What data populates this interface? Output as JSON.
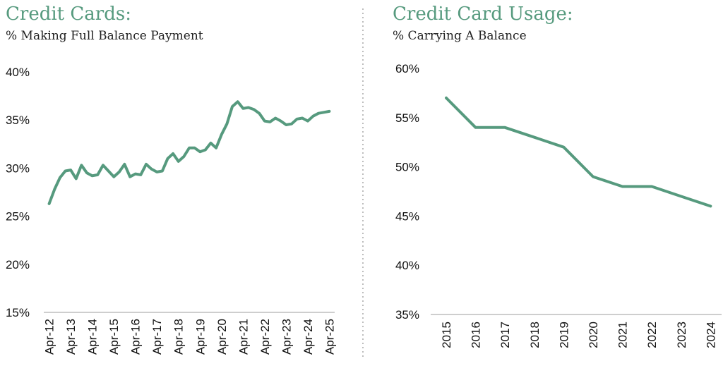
{
  "colors": {
    "series": "#569a7e",
    "title": "#569a7e",
    "divider": "#bdbdbd",
    "axis": "#9e9e9e"
  },
  "chart_data": [
    {
      "type": "line",
      "title": "Credit Cards:",
      "subtitle": "% Making Full Balance Payment",
      "y_tick_labels": [
        "40%",
        "35%",
        "30%",
        "25%",
        "20%",
        "15%"
      ],
      "y_ticks": [
        40,
        35,
        30,
        25,
        20,
        15
      ],
      "ylim": [
        15,
        40
      ],
      "x_tick_labels": [
        "Apr-12",
        "Apr-13",
        "Apr-14",
        "Apr-15",
        "Apr-16",
        "Apr-17",
        "Apr-18",
        "Apr-19",
        "Apr-20",
        "Apr-21",
        "Apr-22",
        "Apr-23",
        "Apr-24",
        "Apr-25"
      ],
      "x_tick_positions": [
        2012.25,
        2013.25,
        2014.25,
        2015.25,
        2016.25,
        2017.25,
        2018.25,
        2019.25,
        2020.25,
        2021.25,
        2022.25,
        2023.25,
        2024.25,
        2025.25
      ],
      "xlim": [
        2012.0,
        2025.5
      ],
      "x": [
        2012.25,
        2012.5,
        2012.75,
        2013.0,
        2013.25,
        2013.5,
        2013.75,
        2014.0,
        2014.25,
        2014.5,
        2014.75,
        2015.0,
        2015.25,
        2015.5,
        2015.75,
        2016.0,
        2016.25,
        2016.5,
        2016.75,
        2017.0,
        2017.25,
        2017.5,
        2017.75,
        2018.0,
        2018.25,
        2018.5,
        2018.75,
        2019.0,
        2019.25,
        2019.5,
        2019.75,
        2020.0,
        2020.25,
        2020.5,
        2020.75,
        2021.0,
        2021.25,
        2021.5,
        2021.75,
        2022.0,
        2022.25,
        2022.5,
        2022.75,
        2023.0,
        2023.25,
        2023.5,
        2023.75,
        2024.0,
        2024.25,
        2024.5,
        2024.75,
        2025.0,
        2025.25
      ],
      "y": [
        26.3,
        27.8,
        29.0,
        29.7,
        29.8,
        28.9,
        30.3,
        29.5,
        29.2,
        29.3,
        30.3,
        29.7,
        29.1,
        29.6,
        30.4,
        29.1,
        29.4,
        29.3,
        30.4,
        29.9,
        29.6,
        29.7,
        31.0,
        31.5,
        30.7,
        31.2,
        32.1,
        32.1,
        31.7,
        31.9,
        32.6,
        32.1,
        33.5,
        34.6,
        36.4,
        36.9,
        36.2,
        36.3,
        36.1,
        35.7,
        34.9,
        34.8,
        35.2,
        34.9,
        34.5,
        34.6,
        35.1,
        35.2,
        34.9,
        35.4,
        35.7,
        35.8,
        35.9
      ]
    },
    {
      "type": "line",
      "title": "Credit Card Usage:",
      "subtitle": "% Carrying A Balance",
      "y_tick_labels": [
        "60%",
        "55%",
        "50%",
        "45%",
        "40%",
        "35%"
      ],
      "y_ticks": [
        60,
        55,
        50,
        45,
        40,
        35
      ],
      "ylim": [
        35,
        60
      ],
      "x_tick_labels": [
        "2015",
        "2016",
        "2017",
        "2018",
        "2019",
        "2020",
        "2021",
        "2022",
        "2023",
        "2024"
      ],
      "x": [
        2015,
        2016,
        2017,
        2018,
        2019,
        2020,
        2021,
        2022,
        2023,
        2024
      ],
      "y": [
        57,
        54,
        54,
        53,
        52,
        49,
        48,
        48,
        47,
        46
      ]
    }
  ]
}
